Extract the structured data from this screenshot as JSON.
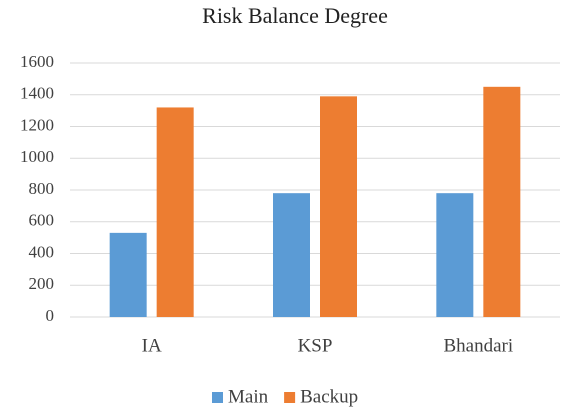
{
  "chart_data": {
    "type": "bar",
    "title": "Risk Balance Degree",
    "categories": [
      "IA",
      "KSP",
      "Bhandari"
    ],
    "series": [
      {
        "name": "Main",
        "color": "#5b9bd5",
        "values": [
          530,
          780,
          780
        ]
      },
      {
        "name": "Backup",
        "color": "#ed7d31",
        "values": [
          1320,
          1390,
          1450
        ]
      }
    ],
    "ylim": [
      0,
      1600
    ],
    "yticks": [
      0,
      200,
      400,
      600,
      800,
      1000,
      1200,
      1400,
      1600
    ],
    "grid": true,
    "legend": "bottom"
  }
}
